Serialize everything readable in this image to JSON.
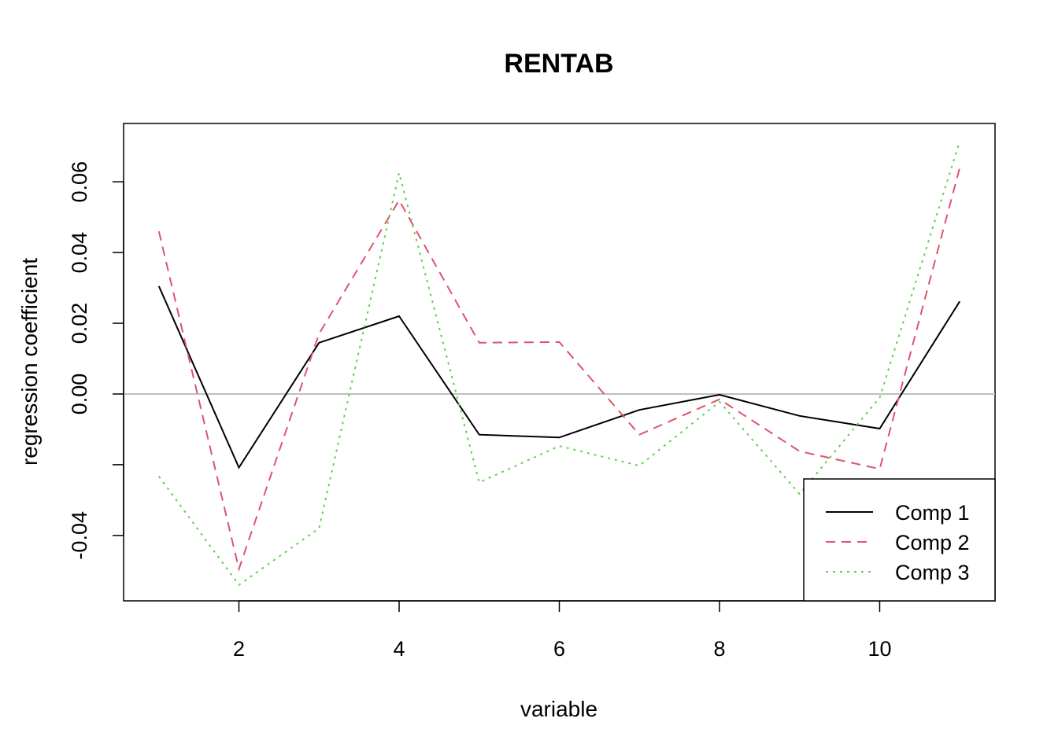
{
  "chart_data": {
    "type": "line",
    "title": "RENTAB",
    "xlabel": "variable",
    "ylabel": "regression coefficient",
    "x": [
      1,
      2,
      3,
      4,
      5,
      6,
      7,
      8,
      9,
      10,
      11
    ],
    "xlim": [
      0.56,
      11.44
    ],
    "ylim": [
      -0.0585,
      0.0765
    ],
    "xticks": [
      2,
      4,
      6,
      8,
      10
    ],
    "xtick_labels": [
      "2",
      "4",
      "6",
      "8",
      "10"
    ],
    "yticks": [
      -0.04,
      -0.02,
      0.0,
      0.02,
      0.04,
      0.06
    ],
    "ytick_labels": [
      "-0.04",
      "",
      "0.00",
      "0.02",
      "0.04",
      "0.06"
    ],
    "reference_line": {
      "y": 0,
      "color": "#bebebe"
    },
    "grid": false,
    "legend_position": "bottom-right",
    "series": [
      {
        "name": "Comp 1",
        "color": "#000000",
        "dash": "solid",
        "values": [
          0.0305,
          -0.0208,
          0.0145,
          0.022,
          -0.0115,
          -0.0123,
          -0.0045,
          -0.0002,
          -0.0062,
          -0.0098,
          0.0262
        ]
      },
      {
        "name": "Comp 2",
        "color": "#DF536B",
        "dash": "dashed",
        "values": [
          0.046,
          -0.0495,
          0.017,
          0.0548,
          0.0145,
          0.0147,
          -0.0115,
          -0.0015,
          -0.0162,
          -0.0212,
          0.064
        ]
      },
      {
        "name": "Comp 3",
        "color": "#61D04F",
        "dash": "dotted",
        "values": [
          -0.0233,
          -0.054,
          -0.038,
          0.0625,
          -0.025,
          -0.0147,
          -0.0203,
          -0.0022,
          -0.0283,
          -0.001,
          0.0715
        ]
      }
    ]
  }
}
